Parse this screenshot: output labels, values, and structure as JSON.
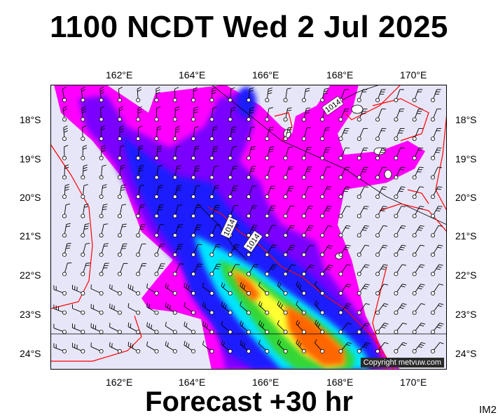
{
  "title": "1100 NCDT Wed 2 Jul 2025",
  "footer": "Forecast +30 hr",
  "image_code": "IM2",
  "copyright": "Copyright metvuw.com",
  "axes": {
    "lon_labels": [
      "162°E",
      "164°E",
      "166°E",
      "168°E",
      "170°E"
    ],
    "lat_labels": [
      "18°S",
      "19°S",
      "20°S",
      "21°S",
      "22°S",
      "23°S",
      "24°S"
    ]
  },
  "isobar_labels": [
    "1014",
    "1014",
    "1014"
  ],
  "colors": {
    "background": "#e6e6f8",
    "magenta": "#ff00ff",
    "violet": "#7a00ff",
    "blue": "#1a1aff",
    "cyan": "#00e5ff",
    "green": "#36d636",
    "yellow": "#ffff33",
    "orange": "#ff6600",
    "red_coast": "#ff0000"
  }
}
